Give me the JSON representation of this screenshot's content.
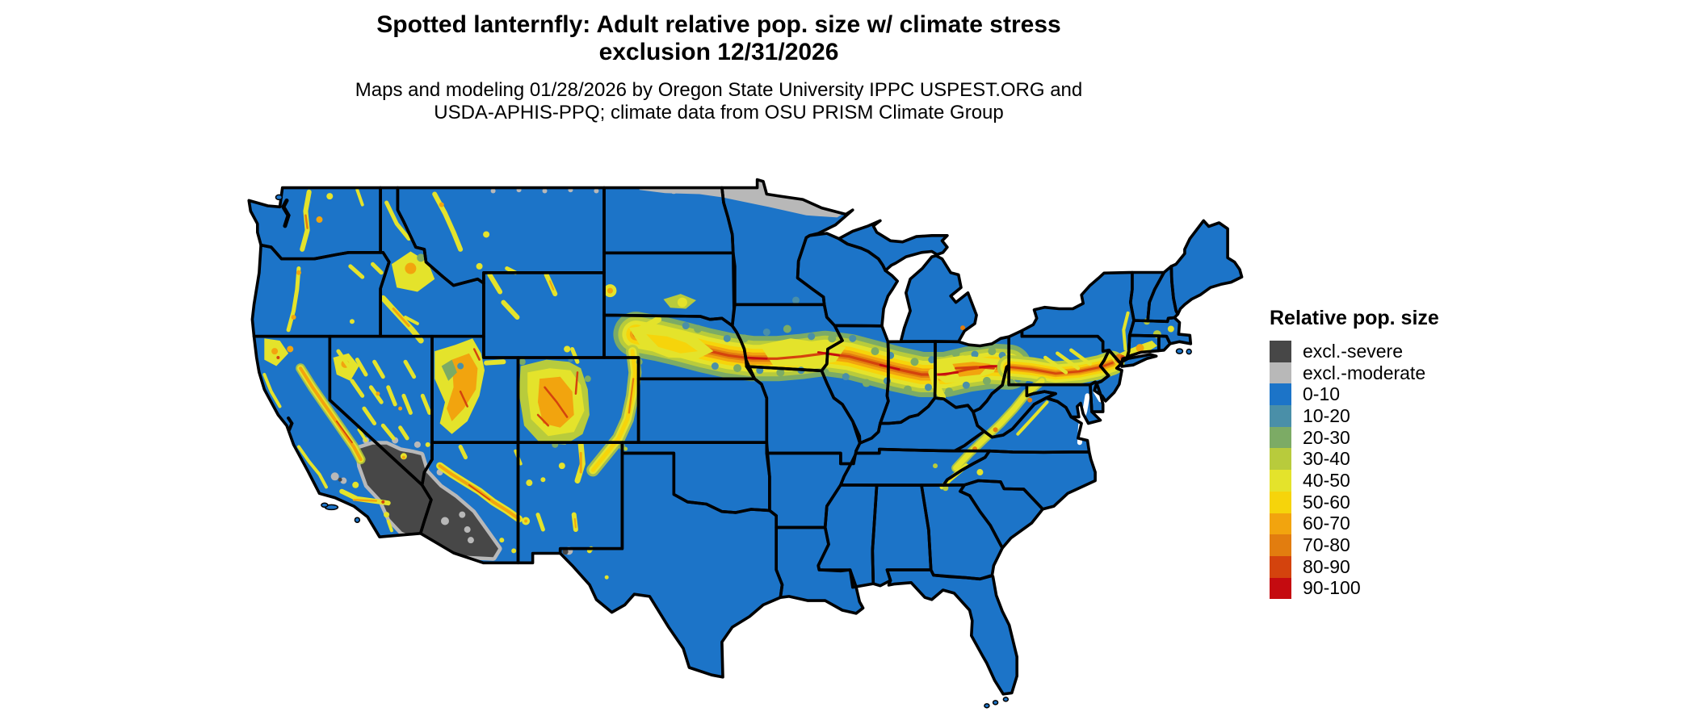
{
  "header": {
    "title_line1": "Spotted lanternfly: Adult relative pop. size w/ climate stress",
    "title_line2": "exclusion 12/31/2026",
    "subtitle_line1": "Maps and modeling 01/28/2026 by Oregon State University IPPC USPEST.ORG and",
    "subtitle_line2": "USDA-APHIS-PPQ; climate data from OSU PRISM Climate Group"
  },
  "legend": {
    "title": "Relative pop. size",
    "items": [
      {
        "label": "excl.-severe",
        "color": "#474747"
      },
      {
        "label": "excl.-moderate",
        "color": "#b8b8b8"
      },
      {
        "label": "0-10",
        "color": "#1c74c8"
      },
      {
        "label": "10-20",
        "color": "#4a8fa8"
      },
      {
        "label": "20-30",
        "color": "#7cab65"
      },
      {
        "label": "30-40",
        "color": "#b8cb3c"
      },
      {
        "label": "40-50",
        "color": "#e4e32b"
      },
      {
        "label": "50-60",
        "color": "#f6d40b"
      },
      {
        "label": "60-70",
        "color": "#f2a40e"
      },
      {
        "label": "70-80",
        "color": "#e27d0f"
      },
      {
        "label": "80-90",
        "color": "#d4430d"
      },
      {
        "label": "90-100",
        "color": "#c50b10"
      }
    ]
  },
  "map": {
    "region": "Contiguous United States",
    "land_default_class": "0-10",
    "state_border_color": "#000000",
    "water_background": "#ffffff",
    "high_population_belt": "central Nebraska through Iowa, Illinois, Indiana, Ohio, Pennsylvania to New Jersey",
    "severe_exclusion_area": "southwestern Arizona / southeastern California deserts",
    "moderate_exclusion_area": "northern North Dakota and northern Minnesota along Canadian border"
  }
}
